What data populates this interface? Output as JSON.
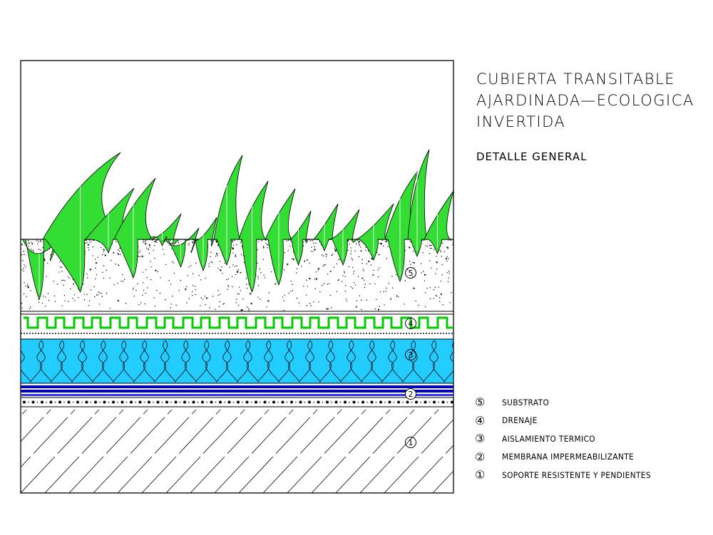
{
  "title": {
    "lines": [
      "CUBIERTA  TRANSITABLE",
      "AJARDINADA—ECOLOGICA",
      "INVERTIDA"
    ]
  },
  "subtitle": "DETALLE  GENERAL",
  "layers": [
    {
      "id": 5,
      "label": "5",
      "name": "SUBSTRATO",
      "color": "#ffffff"
    },
    {
      "id": 4,
      "label": "4",
      "name": "DRENAJE",
      "color": "#00cc00"
    },
    {
      "id": 3,
      "label": "3",
      "name": "AISLAMIENTO  TERMICO",
      "color": "#00ccff"
    },
    {
      "id": 2,
      "label": "2",
      "name": "MEMBRANA  IMPERMEABILIZANTE",
      "color": "#0000cc"
    },
    {
      "id": 1,
      "label": "1",
      "name": "SOPORTE  RESISTENTE  Y  PENDIENTES",
      "color": "#ffffff"
    }
  ],
  "legend": [
    {
      "num": "⑤",
      "text": "SUBSTRATO"
    },
    {
      "num": "④",
      "text": "DRENAJE"
    },
    {
      "num": "③",
      "text": "AISLAMIENTO  TERMICO"
    },
    {
      "num": "②",
      "text": "MEMBRANA  IMPERMEABILIZANTE"
    },
    {
      "num": "①",
      "text": "SOPORTE  RESISTENTE  Y  PENDIENTES"
    }
  ],
  "colors": {
    "grass": "#33dd33",
    "insulation": "#22ccff",
    "membrane": "#0000cc",
    "drainage": "#00cc00",
    "line": "#000000"
  }
}
